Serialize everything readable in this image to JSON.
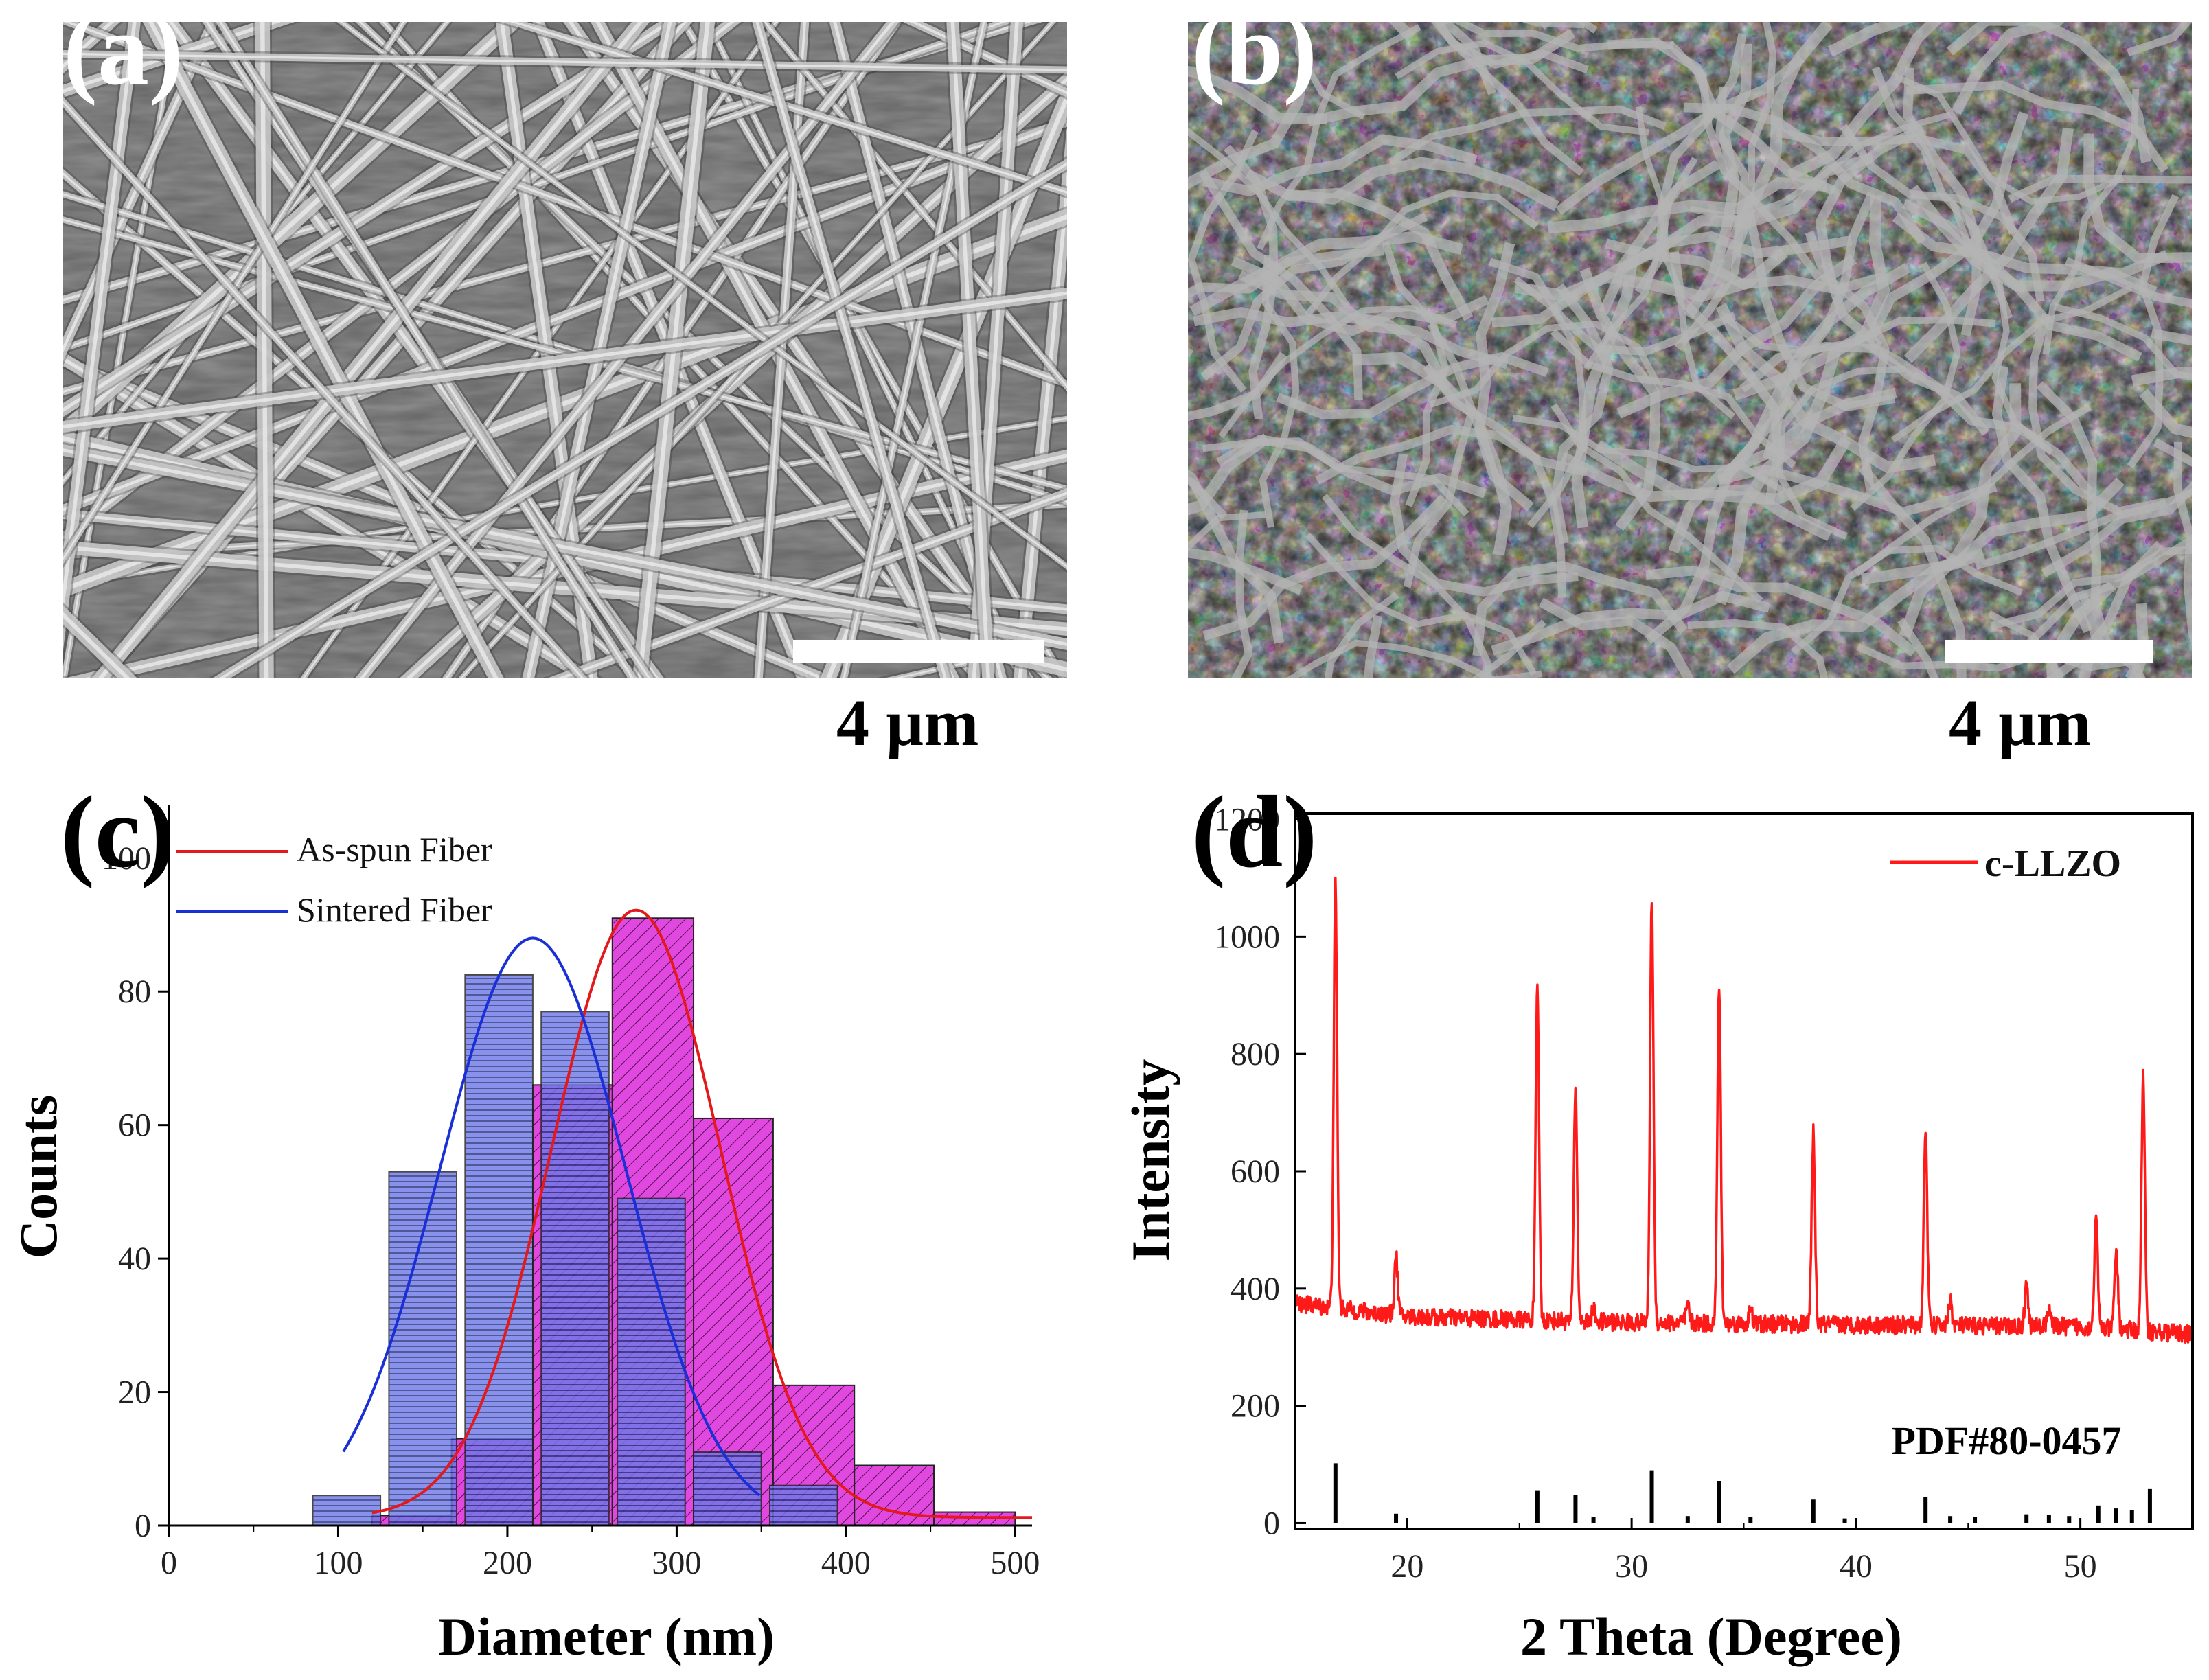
{
  "panels": {
    "a": {
      "label": "(a)",
      "scale_bar": "4 µm"
    },
    "b": {
      "label": "(b)",
      "scale_bar": "4 µm"
    },
    "c": {
      "label": "(c)"
    },
    "d": {
      "label": "(d)"
    }
  },
  "colors": {
    "as_spun": "#e3191c",
    "sintered": "#1a2fd6",
    "as_spun_bar": "#e048e0",
    "sintered_bar": "#6e7be8",
    "xrd": "#ff1a1a",
    "reference": "#000000"
  },
  "chart_data": [
    {
      "type": "bar",
      "panel": "c",
      "xlabel": "Diameter (nm)",
      "ylabel": "Counts",
      "xlim": [
        0,
        510
      ],
      "ylim": [
        0,
        108
      ],
      "xticks": [
        0,
        100,
        200,
        300,
        400,
        500
      ],
      "yticks": [
        0,
        20,
        40,
        60,
        80,
        100
      ],
      "legend_placement": "top-left",
      "series": [
        {
          "name": "As-spun Fiber",
          "bins": [
            {
              "x0": 120,
              "x1": 167,
              "count": 1.5
            },
            {
              "x0": 167,
              "x1": 215,
              "count": 13
            },
            {
              "x0": 215,
              "x1": 262,
              "count": 66
            },
            {
              "x0": 262,
              "x1": 310,
              "count": 91
            },
            {
              "x0": 310,
              "x1": 357,
              "count": 61
            },
            {
              "x0": 357,
              "x1": 405,
              "count": 21
            },
            {
              "x0": 405,
              "x1": 452,
              "count": 9
            },
            {
              "x0": 452,
              "x1": 500,
              "count": 2
            }
          ],
          "fit": {
            "center": 276,
            "sigma": 50,
            "amplitude": 91,
            "offset": 1.2,
            "x_range": [
              120,
              510
            ]
          }
        },
        {
          "name": "Sintered Fiber",
          "bins": [
            {
              "x0": 85,
              "x1": 125,
              "count": 4.5
            },
            {
              "x0": 130,
              "x1": 170,
              "count": 53
            },
            {
              "x0": 175,
              "x1": 215,
              "count": 82.5
            },
            {
              "x0": 220,
              "x1": 260,
              "count": 77
            },
            {
              "x0": 265,
              "x1": 305,
              "count": 49
            },
            {
              "x0": 310,
              "x1": 350,
              "count": 11
            },
            {
              "x0": 355,
              "x1": 395,
              "count": 6
            }
          ],
          "fit": {
            "center": 215,
            "sigma": 55,
            "amplitude": 88,
            "offset": 0,
            "x_range": [
              103,
              350
            ]
          }
        }
      ]
    },
    {
      "type": "line",
      "panel": "d",
      "xlabel": "2 Theta (Degree)",
      "ylabel": "Intensity",
      "xlim": [
        15,
        55
      ],
      "ylim": [
        -10,
        1210
      ],
      "xticks": [
        20,
        30,
        40,
        50
      ],
      "yticks": [
        0,
        200,
        400,
        600,
        800,
        1000,
        1200
      ],
      "legend_placement": "top-right",
      "annotation": "PDF#80-0457",
      "series": [
        {
          "name": "c-LLZO",
          "baseline": [
            [
              15,
              375
            ],
            [
              20,
              352
            ],
            [
              30,
              342
            ],
            [
              40,
              338
            ],
            [
              50,
              335
            ],
            [
              55,
              322
            ]
          ],
          "peaks": [
            [
              16.8,
              1090
            ],
            [
              19.5,
              455
            ],
            [
              25.8,
              918
            ],
            [
              27.5,
              745
            ],
            [
              28.3,
              363
            ],
            [
              30.9,
              1070
            ],
            [
              32.5,
              370
            ],
            [
              33.9,
              920
            ],
            [
              35.3,
              362
            ],
            [
              38.1,
              665
            ],
            [
              43.1,
              677
            ],
            [
              44.2,
              380
            ],
            [
              47.6,
              405
            ],
            [
              48.6,
              370
            ],
            [
              50.7,
              520
            ],
            [
              51.6,
              465
            ],
            [
              52.8,
              760
            ]
          ]
        },
        {
          "name": "PDF#80-0457",
          "sticks": [
            [
              16.8,
              102
            ],
            [
              19.5,
              16
            ],
            [
              25.8,
              56
            ],
            [
              27.5,
              48
            ],
            [
              28.3,
              10
            ],
            [
              30.9,
              90
            ],
            [
              32.5,
              12
            ],
            [
              33.9,
              72
            ],
            [
              35.3,
              10
            ],
            [
              38.1,
              40
            ],
            [
              39.5,
              8
            ],
            [
              43.1,
              45
            ],
            [
              44.2,
              12
            ],
            [
              45.3,
              10
            ],
            [
              47.6,
              15
            ],
            [
              48.6,
              14
            ],
            [
              49.5,
              12
            ],
            [
              50.8,
              30
            ],
            [
              51.6,
              25
            ],
            [
              52.3,
              22
            ],
            [
              53.1,
              58
            ]
          ]
        }
      ]
    }
  ]
}
